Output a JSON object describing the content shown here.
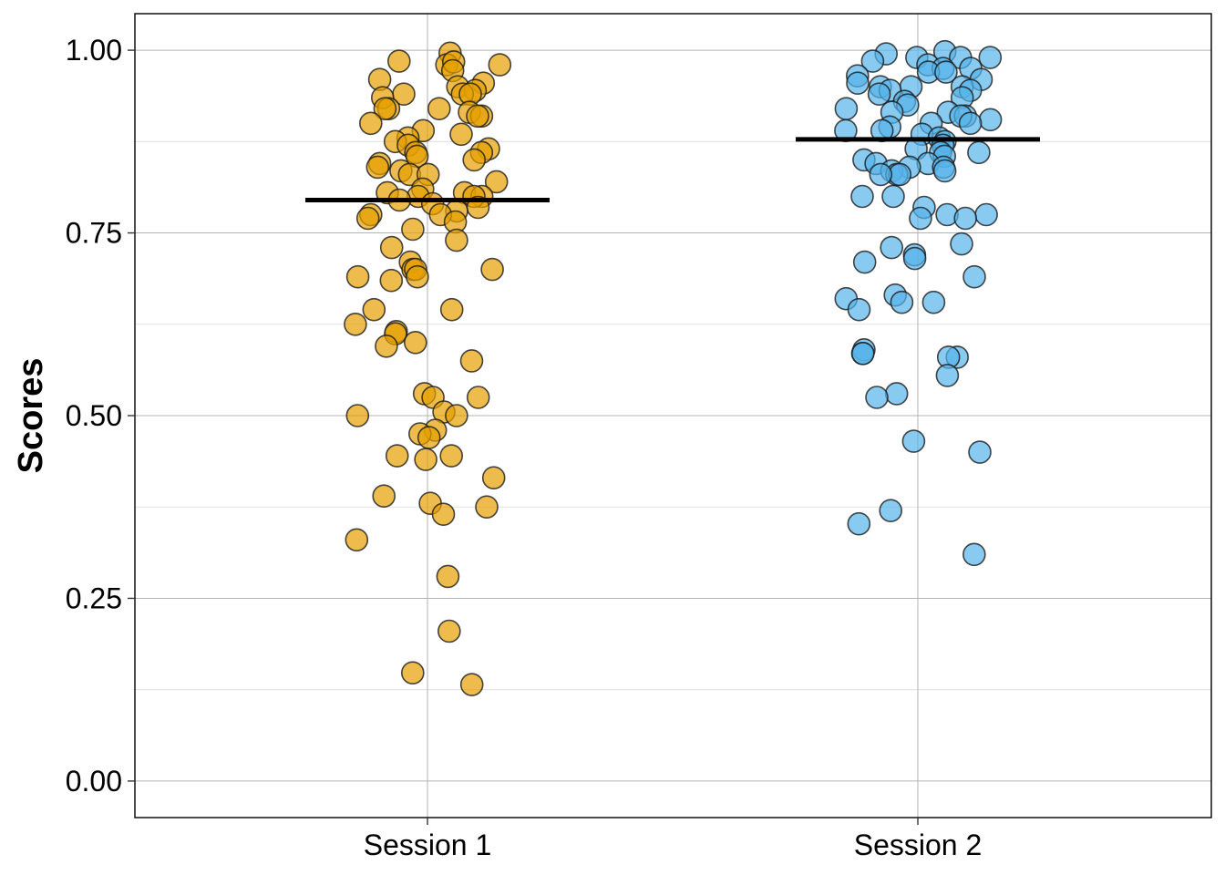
{
  "chart_data": {
    "type": "scatter",
    "title": "",
    "xlabel": "",
    "ylabel": "Scores",
    "ylim": [
      -0.05,
      1.05
    ],
    "y_ticks": [
      "0.00",
      "0.25",
      "0.50",
      "0.75",
      "1.00"
    ],
    "categories": [
      "Session 1",
      "Session 2"
    ],
    "grid": true,
    "series": [
      {
        "category": "Session 1",
        "color": "#E69F00",
        "mean": 0.795,
        "values": [
          0.996,
          0.985,
          0.98,
          0.98,
          0.984,
          0.972,
          0.96,
          0.955,
          0.95,
          0.945,
          0.94,
          0.94,
          0.94,
          0.935,
          0.92,
          0.92,
          0.92,
          0.915,
          0.91,
          0.91,
          0.9,
          0.89,
          0.885,
          0.88,
          0.875,
          0.87,
          0.865,
          0.86,
          0.86,
          0.855,
          0.85,
          0.845,
          0.84,
          0.835,
          0.83,
          0.83,
          0.82,
          0.81,
          0.805,
          0.805,
          0.8,
          0.8,
          0.8,
          0.795,
          0.79,
          0.785,
          0.78,
          0.775,
          0.775,
          0.77,
          0.765,
          0.755,
          0.74,
          0.73,
          0.71,
          0.7,
          0.7,
          0.7,
          0.69,
          0.69,
          0.685,
          0.645,
          0.645,
          0.625,
          0.615,
          0.612,
          0.6,
          0.595,
          0.575,
          0.53,
          0.525,
          0.525,
          0.505,
          0.5,
          0.5,
          0.48,
          0.475,
          0.47,
          0.445,
          0.445,
          0.44,
          0.415,
          0.39,
          0.38,
          0.375,
          0.365,
          0.33,
          0.28,
          0.205,
          0.148,
          0.132
        ]
      },
      {
        "category": "Session 2",
        "color": "#56B4E9",
        "mean": 0.878,
        "values": [
          0.998,
          0.995,
          0.99,
          0.99,
          0.99,
          0.985,
          0.98,
          0.975,
          0.975,
          0.97,
          0.97,
          0.965,
          0.96,
          0.955,
          0.95,
          0.95,
          0.95,
          0.945,
          0.945,
          0.94,
          0.935,
          0.93,
          0.925,
          0.92,
          0.915,
          0.915,
          0.91,
          0.91,
          0.905,
          0.9,
          0.9,
          0.895,
          0.89,
          0.89,
          0.885,
          0.88,
          0.875,
          0.87,
          0.865,
          0.86,
          0.86,
          0.855,
          0.85,
          0.845,
          0.845,
          0.84,
          0.84,
          0.835,
          0.835,
          0.83,
          0.83,
          0.83,
          0.8,
          0.8,
          0.785,
          0.775,
          0.775,
          0.77,
          0.77,
          0.735,
          0.73,
          0.72,
          0.715,
          0.71,
          0.69,
          0.665,
          0.66,
          0.655,
          0.655,
          0.645,
          0.59,
          0.585,
          0.585,
          0.58,
          0.58,
          0.555,
          0.53,
          0.525,
          0.465,
          0.45,
          0.37,
          0.352,
          0.31
        ]
      }
    ]
  }
}
